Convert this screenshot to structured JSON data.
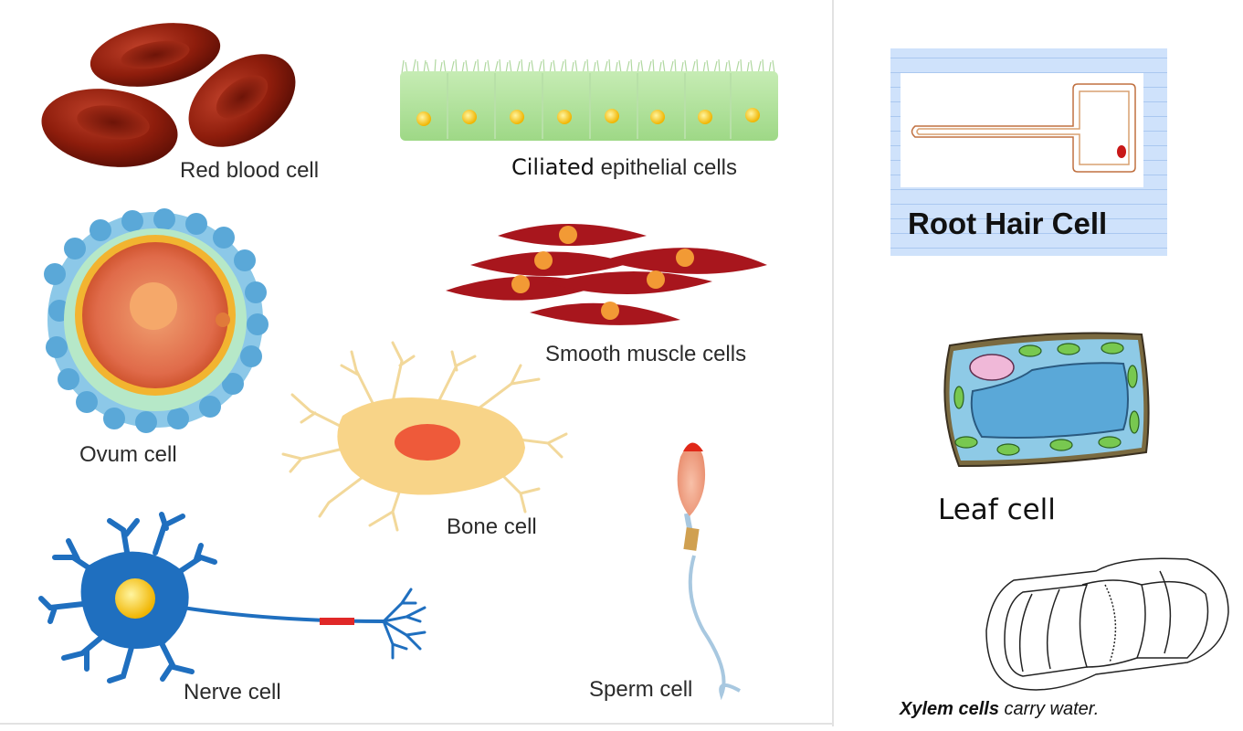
{
  "animal_cells": {
    "red_blood": "Red blood cell",
    "ciliated_a": "Ciliated",
    "ciliated_b": "epithelial cells",
    "smooth_muscle": "Smooth muscle cells",
    "ovum": "Ovum cell",
    "bone": "Bone cell",
    "nerve": "Nerve cell",
    "sperm": "Sperm cell"
  },
  "plant_cells": {
    "root_hair": "Root Hair Cell",
    "leaf": "Leaf cell",
    "xylem_bold": "Xylem cells",
    "xylem_rest": " carry water."
  },
  "colors": {
    "rbc": "#8e1d0c",
    "muscle": "#a8161d",
    "nucleus_orange": "#f29a35",
    "nerve": "#1f6fbf",
    "epithelial": "#a6dd8e",
    "root_panel": "#cde1fb"
  }
}
